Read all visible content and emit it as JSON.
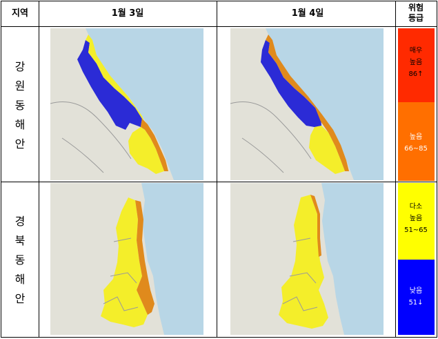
{
  "header": {
    "region": "지역",
    "date1": "1월 3일",
    "date2": "1월 4일",
    "risk": [
      "위험",
      "등급"
    ]
  },
  "rows": [
    {
      "region_chars": [
        "강",
        "원",
        "동",
        "해",
        "안"
      ]
    },
    {
      "region_chars": [
        "경",
        "북",
        "동",
        "해",
        "안"
      ]
    }
  ],
  "legend": [
    {
      "lines": [
        "매우",
        "높음",
        "86↑"
      ],
      "color": "#ff2a00",
      "text_color": "#000000"
    },
    {
      "lines": [
        "높음",
        "66~85"
      ],
      "color": "#ff6f00",
      "text_color": "#ffffff"
    },
    {
      "lines": [
        "다소",
        "높음",
        "51~65"
      ],
      "color": "#ffff00",
      "text_color": "#000000"
    },
    {
      "lines": [
        "낮음",
        "51↓"
      ],
      "color": "#0000ff",
      "text_color": "#ffffff"
    }
  ],
  "map_colors": {
    "sea": "#b8d6e6",
    "land": "#e2e1d8",
    "low": "#2b2bd6",
    "moderate": "#f4ee2a",
    "high": "#e08a1c"
  }
}
